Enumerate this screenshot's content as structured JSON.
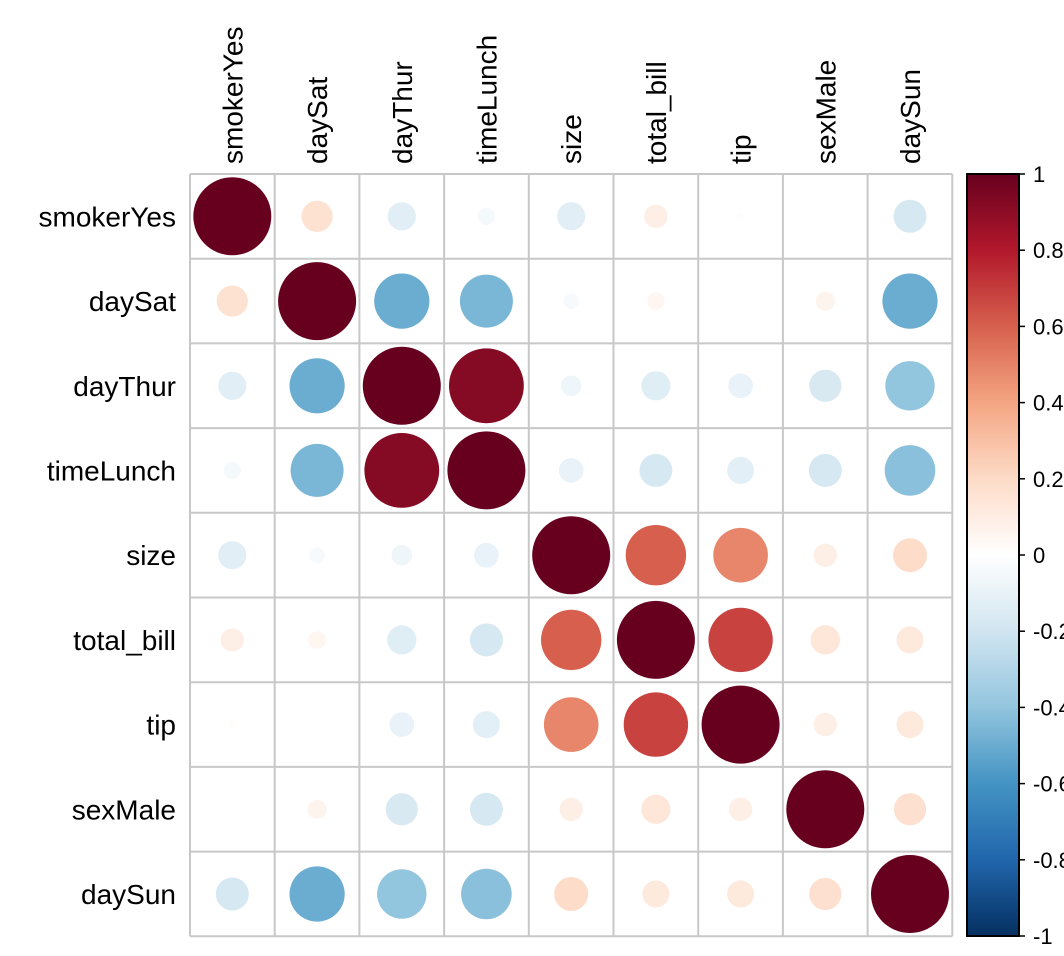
{
  "chart_data": {
    "type": "heatmap",
    "subtype": "correlation-circles",
    "variables": [
      "smokerYes",
      "daySat",
      "dayThur",
      "timeLunch",
      "size",
      "total_bill",
      "tip",
      "sexMale",
      "daySun"
    ],
    "matrix": [
      [
        1.0,
        0.16,
        -0.13,
        -0.05,
        -0.13,
        0.09,
        0.01,
        0.0,
        -0.18
      ],
      [
        0.16,
        1.0,
        -0.5,
        -0.46,
        -0.04,
        0.05,
        0.0,
        0.06,
        -0.5
      ],
      [
        -0.13,
        -0.5,
        1.0,
        0.92,
        -0.07,
        -0.14,
        -0.1,
        -0.17,
        -0.4
      ],
      [
        -0.05,
        -0.46,
        0.92,
        1.0,
        -0.1,
        -0.18,
        -0.12,
        -0.18,
        -0.42
      ],
      [
        -0.13,
        -0.04,
        -0.07,
        -0.1,
        1.0,
        0.6,
        0.49,
        0.09,
        0.19
      ],
      [
        0.09,
        0.05,
        -0.14,
        -0.18,
        0.6,
        1.0,
        0.68,
        0.14,
        0.12
      ],
      [
        0.01,
        0.0,
        -0.1,
        -0.12,
        0.49,
        0.68,
        1.0,
        0.09,
        0.12
      ],
      [
        0.0,
        0.06,
        -0.17,
        -0.18,
        0.09,
        0.14,
        0.09,
        1.0,
        0.17
      ],
      [
        -0.18,
        -0.5,
        -0.4,
        -0.42,
        0.19,
        0.12,
        0.12,
        0.17,
        1.0
      ]
    ],
    "colorbar": {
      "range": [
        -1,
        1
      ],
      "tick_labels": [
        "1",
        "0.8",
        "0.6",
        "0.4",
        "0.2",
        "0",
        "-0.2",
        "-0.4",
        "-0.6",
        "-0.8",
        "-1"
      ],
      "colors": [
        "#67001F",
        "#B2182B",
        "#D6604D",
        "#F4A582",
        "#FDDBC7",
        "#FFFFFF",
        "#D1E5F0",
        "#92C5DE",
        "#4393C3",
        "#2166AC",
        "#053061"
      ]
    },
    "grid": true,
    "legend_position": "right"
  }
}
